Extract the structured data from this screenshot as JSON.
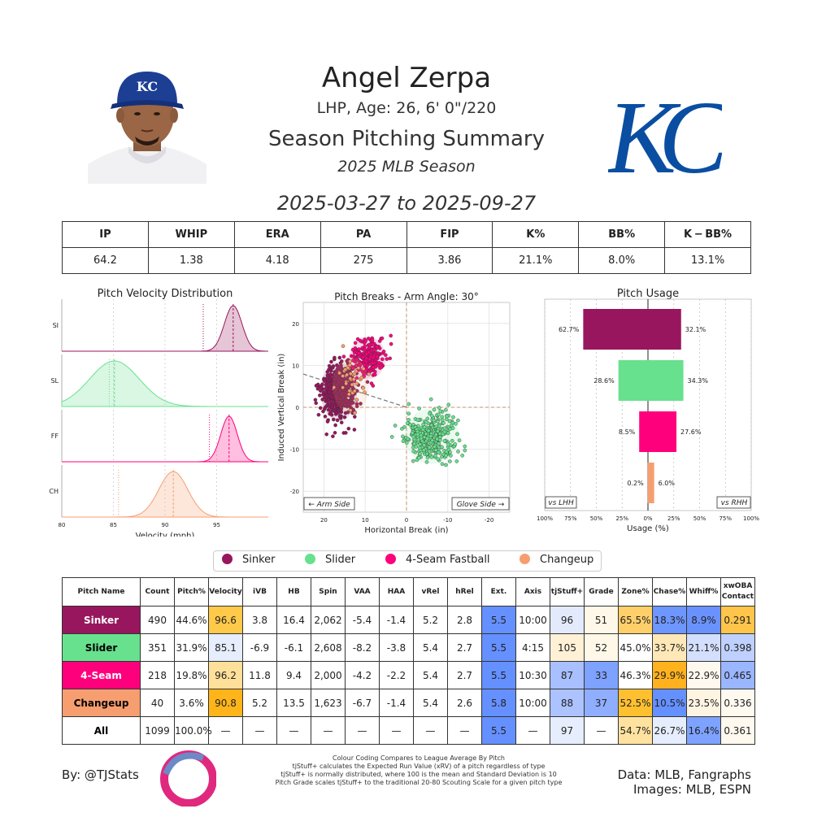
{
  "header": {
    "name": "Angel Zerpa",
    "bio": "LHP, Age: 26, 6' 0\"/220",
    "summary_title": "Season Pitching Summary",
    "season": "2025 MLB Season",
    "date_range": "2025-03-27 to 2025-09-27",
    "team_logo_text": "KC",
    "cap_logo_text": "KC"
  },
  "stats_table": {
    "headers": [
      "IP",
      "WHIP",
      "ERA",
      "PA",
      "FIP",
      "K%",
      "BB%",
      "K − BB%"
    ],
    "values": [
      "64.2",
      "1.38",
      "4.18",
      "275",
      "3.86",
      "21.1%",
      "8.0%",
      "13.1%"
    ]
  },
  "colors": {
    "sinker": "#98165D",
    "slider": "#67E18D",
    "fourseam": "#FF007D",
    "changeup": "#F79E70"
  },
  "chart_data": [
    {
      "type": "area",
      "title": "Pitch Velocity Distribution",
      "xlabel": "Velocity (mph)",
      "xlim": [
        80,
        100
      ],
      "xticks": [
        "80",
        "85",
        "90",
        "95"
      ],
      "rows": [
        {
          "label": "SI",
          "color": "#98165D",
          "mean": 96.6,
          "sd": 0.85,
          "league": 93.7
        },
        {
          "label": "SL",
          "color": "#67E18D",
          "mean": 85.1,
          "sd": 2.4,
          "league": 84.6
        },
        {
          "label": "FF",
          "color": "#FF007D",
          "mean": 96.2,
          "sd": 0.8,
          "league": 94.3
        },
        {
          "label": "CH",
          "color": "#F79E70",
          "mean": 90.8,
          "sd": 1.4,
          "league": 85.5
        }
      ]
    },
    {
      "type": "scatter",
      "title": "Pitch Breaks - Arm Angle: 30°",
      "xlabel": "Horizontal Break (in)",
      "ylabel": "Induced Vertical Break (in)",
      "xlim": [
        25,
        -25
      ],
      "ylim": [
        -25,
        25
      ],
      "xticks": [
        "20",
        "10",
        "0",
        "-10",
        "-20"
      ],
      "yticks": [
        "20",
        "10",
        "0",
        "-10",
        "-20"
      ],
      "arm_side_label": "← Arm Side",
      "glove_side_label": "Glove Side →",
      "arm_angle_deg": 30,
      "series": [
        {
          "name": "Sinker",
          "color": "#98165D",
          "cx": 16.4,
          "cy": 3.8,
          "sx": 2.0,
          "sy": 3.2,
          "n": 490
        },
        {
          "name": "Slider",
          "color": "#67E18D",
          "cx": -6.1,
          "cy": -6.9,
          "sx": 3.0,
          "sy": 3.0,
          "n": 351
        },
        {
          "name": "4-Seam Fastball",
          "color": "#FF007D",
          "cx": 9.4,
          "cy": 11.8,
          "sx": 2.0,
          "sy": 2.3,
          "n": 218
        },
        {
          "name": "Changeup",
          "color": "#F79E70",
          "cx": 13.5,
          "cy": 5.2,
          "sx": 2.0,
          "sy": 3.0,
          "n": 40
        }
      ]
    },
    {
      "type": "bar",
      "title": "Pitch Usage",
      "xlabel": "Usage (%)",
      "xticks": [
        "100%",
        "75%",
        "50%",
        "25%",
        "0%",
        "25%",
        "50%",
        "75%",
        "100%"
      ],
      "left_label": "vs LHH",
      "right_label": "vs RHH",
      "categories": [
        "Sinker",
        "Slider",
        "4-Seam Fastball",
        "Changeup"
      ],
      "colors": [
        "#98165D",
        "#67E18D",
        "#FF007D",
        "#F79E70"
      ],
      "series": [
        {
          "name": "vs LHH",
          "values": [
            62.7,
            28.6,
            8.5,
            0.2
          ]
        },
        {
          "name": "vs RHH",
          "values": [
            32.1,
            34.3,
            27.6,
            6.0
          ]
        }
      ],
      "left_labels": [
        "62.7%",
        "28.6%",
        "8.5%",
        "0.2%"
      ],
      "right_labels": [
        "32.1%",
        "34.3%",
        "27.6%",
        "6.0%"
      ]
    }
  ],
  "legend": [
    {
      "label": "Sinker",
      "color": "#98165D"
    },
    {
      "label": "Slider",
      "color": "#67E18D"
    },
    {
      "label": "4-Seam Fastball",
      "color": "#FF007D"
    },
    {
      "label": "Changeup",
      "color": "#F79E70"
    }
  ],
  "pitch_table": {
    "headers": [
      "Pitch Name",
      "Count",
      "Pitch%",
      "Velocity",
      "iVB",
      "HB",
      "Spin",
      "VAA",
      "HAA",
      "vRel",
      "hRel",
      "Ext.",
      "Axis",
      "tjStuff+",
      "Grade",
      "Zone%",
      "Chase%",
      "Whiff%",
      "xwOBA\nContact"
    ],
    "rows": [
      {
        "name": "Sinker",
        "name_bg": "#98165D",
        "name_fg": "#ffffff",
        "cells": [
          "490",
          "44.6%",
          "96.6",
          "3.8",
          "16.4",
          "2,062",
          "-5.4",
          "-1.4",
          "5.2",
          "2.8",
          "5.5",
          "10:00",
          "96",
          "51",
          "65.5%",
          "18.3%",
          "8.9%",
          "0.291"
        ],
        "bgs": [
          "#fff",
          "#fff",
          "#FFC94A",
          "#fff",
          "#fff",
          "#fff",
          "#fff",
          "#fff",
          "#fff",
          "#fff",
          "#6590FF",
          "#fff",
          "#E3EAFC",
          "#FFF8E8",
          "#FFCF6A",
          "#6E96FF",
          "#6A92FF",
          "#FFC54A"
        ]
      },
      {
        "name": "Slider",
        "name_bg": "#67E18D",
        "name_fg": "#000000",
        "cells": [
          "351",
          "31.9%",
          "85.1",
          "-6.9",
          "-6.1",
          "2,608",
          "-8.2",
          "-3.8",
          "5.4",
          "2.7",
          "5.5",
          "4:15",
          "105",
          "52",
          "45.0%",
          "33.7%",
          "21.1%",
          "0.398"
        ],
        "bgs": [
          "#fff",
          "#fff",
          "#E6EDFC",
          "#fff",
          "#fff",
          "#fff",
          "#fff",
          "#fff",
          "#fff",
          "#fff",
          "#6590FF",
          "#fff",
          "#FFF1D6",
          "#FFF8E8",
          "#FFFFFF",
          "#FFE8B8",
          "#D3DFFC",
          "#BFD0FF"
        ]
      },
      {
        "name": "4-Seam",
        "name_bg": "#FF007D",
        "name_fg": "#ffffff",
        "cells": [
          "218",
          "19.8%",
          "96.2",
          "11.8",
          "9.4",
          "2,000",
          "-4.2",
          "-2.2",
          "5.4",
          "2.7",
          "5.5",
          "10:30",
          "87",
          "33",
          "46.3%",
          "29.9%",
          "22.9%",
          "0.465"
        ],
        "bgs": [
          "#fff",
          "#fff",
          "#FFE09A",
          "#fff",
          "#fff",
          "#fff",
          "#fff",
          "#fff",
          "#fff",
          "#fff",
          "#6590FF",
          "#fff",
          "#A8C0FF",
          "#7EA2FF",
          "#FFFFFF",
          "#FFB21E",
          "#FFF8EE",
          "#9AB6FF"
        ]
      },
      {
        "name": "Changeup",
        "name_bg": "#F79E70",
        "name_fg": "#000000",
        "cells": [
          "40",
          "3.6%",
          "90.8",
          "5.2",
          "13.5",
          "1,623",
          "-6.7",
          "-1.4",
          "5.4",
          "2.6",
          "5.8",
          "10:00",
          "88",
          "37",
          "52.5%",
          "10.5%",
          "23.5%",
          "0.336"
        ],
        "bgs": [
          "#fff",
          "#fff",
          "#FFB51A",
          "#fff",
          "#fff",
          "#fff",
          "#fff",
          "#fff",
          "#fff",
          "#fff",
          "#6590FF",
          "#fff",
          "#ACC3FF",
          "#8FAEFF",
          "#FFC030",
          "#6590FF",
          "#FFF4E2",
          "#FFFAF0"
        ]
      },
      {
        "name": "All",
        "name_bg": "#ffffff",
        "name_fg": "#000000",
        "cells": [
          "1099",
          "100.0%",
          "—",
          "—",
          "—",
          "—",
          "—",
          "—",
          "—",
          "—",
          "5.5",
          "—",
          "97",
          "—",
          "54.7%",
          "26.7%",
          "16.4%",
          "0.361"
        ],
        "bgs": [
          "#fff",
          "#fff",
          "#fff",
          "#fff",
          "#fff",
          "#fff",
          "#fff",
          "#fff",
          "#fff",
          "#fff",
          "#6590FF",
          "#fff",
          "#E6EDFC",
          "#fff",
          "#FFE2A0",
          "#E6EDFC",
          "#7EA2FF",
          "#FFF8EE"
        ]
      }
    ]
  },
  "footer": {
    "by": "By: @TJStats",
    "notes": [
      "Colour Coding Compares to League Average By Pitch",
      "tjStuff+ calculates the Expected Run Value (xRV) of a pitch regardless of type",
      "tjStuff+ is normally distributed, where 100 is the mean and Standard Deviation is 10",
      "Pitch Grade scales tjStuff+ to the traditional 20-80 Scouting Scale for a given pitch type"
    ],
    "data_source": "Data: MLB, Fangraphs",
    "images_source": "Images: MLB, ESPN"
  }
}
